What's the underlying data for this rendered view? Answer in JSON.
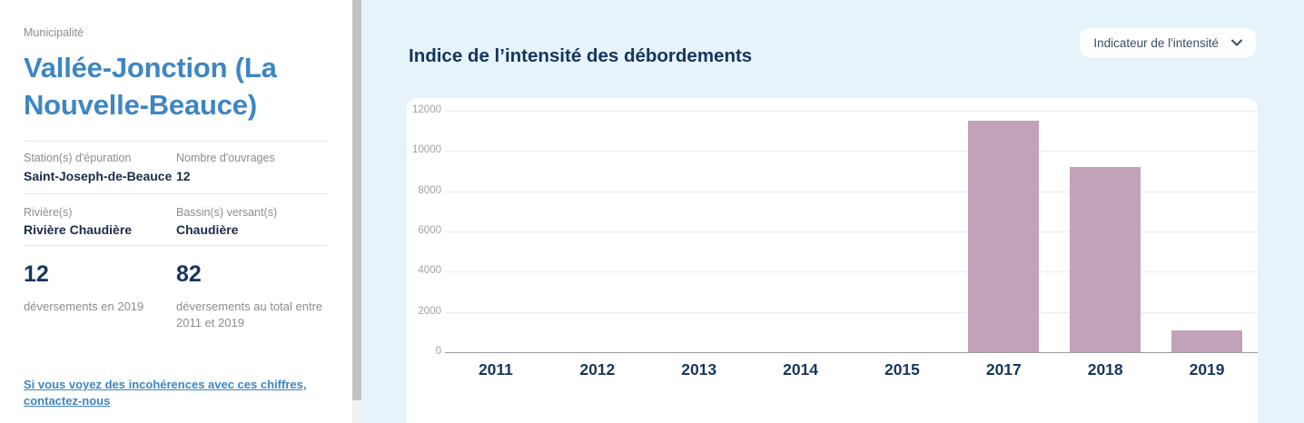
{
  "sidebar": {
    "section_label": "Municipalité",
    "title": "Vallée-Jonction (La Nouvelle-Beauce)",
    "fields": [
      {
        "label": "Station(s) d'épuration",
        "value": "Saint-Joseph-de-Beauce"
      },
      {
        "label": "Nombre d'ouvrages",
        "value": "12"
      },
      {
        "label": "Rivière(s)",
        "value": "Rivière Chaudière"
      },
      {
        "label": "Bassin(s) versant(s)",
        "value": "Chaudière"
      }
    ],
    "stats": [
      {
        "value": "12",
        "label": "déversements en 2019"
      },
      {
        "value": "82",
        "label": "déversements au total entre 2011 et 2019"
      }
    ],
    "link_text": "Si vous voyez des incohérences avec ces chiffres, contactez-nous"
  },
  "main": {
    "chart_title": "Indice de l’intensité des débordements",
    "indicator_select": {
      "value": "Indicateur de l'intensité",
      "icon": "chevron-down-icon"
    }
  },
  "chart_data": {
    "type": "bar",
    "title": "Indice de l’intensité des débordements",
    "categories": [
      "2011",
      "2012",
      "2013",
      "2014",
      "2015",
      "2017",
      "2018",
      "2019"
    ],
    "values": [
      0,
      0,
      0,
      0,
      0,
      11500,
      9200,
      1100
    ],
    "xlabel": "",
    "ylabel": "",
    "ylim": [
      0,
      12000
    ],
    "yticks": [
      0,
      2000,
      4000,
      6000,
      8000,
      10000,
      12000
    ],
    "grid": true,
    "legend": false,
    "bar_color": "#c2a2b8"
  },
  "colors": {
    "accent_blue": "#3e86c3",
    "navy": "#17365f",
    "panel_background": "#e7f3fb",
    "bar": "#c2a2b8"
  }
}
